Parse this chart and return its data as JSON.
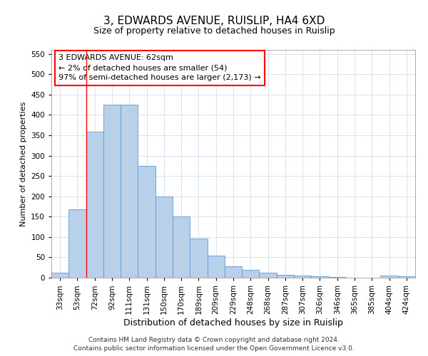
{
  "title1": "3, EDWARDS AVENUE, RUISLIP, HA4 6XD",
  "title2": "Size of property relative to detached houses in Ruislip",
  "xlabel": "Distribution of detached houses by size in Ruislip",
  "ylabel": "Number of detached properties",
  "categories": [
    "33sqm",
    "53sqm",
    "72sqm",
    "92sqm",
    "111sqm",
    "131sqm",
    "150sqm",
    "170sqm",
    "189sqm",
    "209sqm",
    "229sqm",
    "248sqm",
    "268sqm",
    "287sqm",
    "307sqm",
    "326sqm",
    "346sqm",
    "365sqm",
    "385sqm",
    "404sqm",
    "424sqm"
  ],
  "values": [
    13,
    168,
    358,
    425,
    425,
    275,
    200,
    150,
    97,
    55,
    28,
    20,
    13,
    7,
    5,
    4,
    2,
    0,
    0,
    5,
    4
  ],
  "bar_color": "#b8d0e8",
  "bar_edge_color": "#5b9bd5",
  "red_line_x": 1.5,
  "annotation_text": "3 EDWARDS AVENUE: 62sqm\n← 2% of detached houses are smaller (54)\n97% of semi-detached houses are larger (2,173) →",
  "ylim": [
    0,
    560
  ],
  "yticks": [
    0,
    50,
    100,
    150,
    200,
    250,
    300,
    350,
    400,
    450,
    500,
    550
  ],
  "footer1": "Contains HM Land Registry data © Crown copyright and database right 2024.",
  "footer2": "Contains public sector information licensed under the Open Government Licence v3.0.",
  "title1_fontsize": 11,
  "title2_fontsize": 9,
  "xlabel_fontsize": 9,
  "ylabel_fontsize": 8,
  "tick_fontsize": 7.5,
  "annotation_fontsize": 8,
  "footer_fontsize": 6.5
}
